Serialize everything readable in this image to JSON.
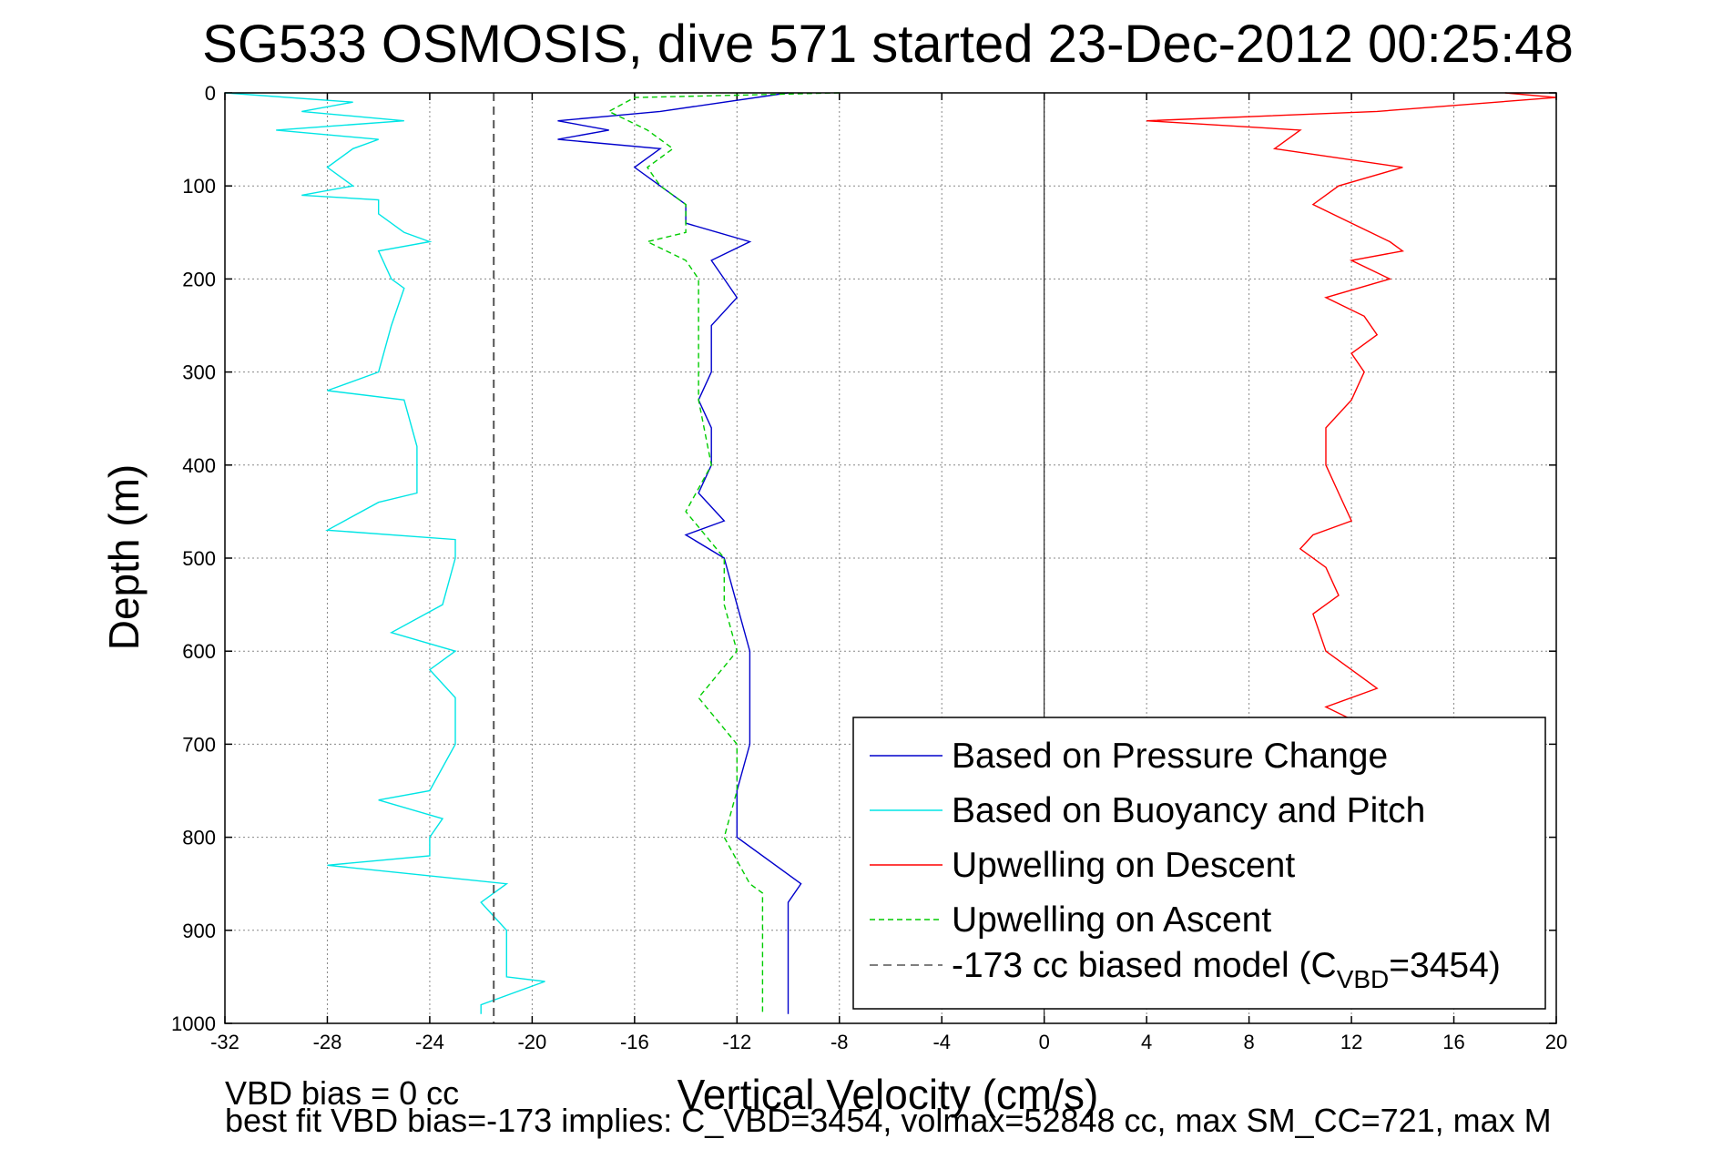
{
  "chart_data": {
    "type": "line",
    "title": "SG533 OSMOSIS, dive 571 started 23-Dec-2012 00:25:48",
    "xlabel": "Vertical Velocity (cm/s)",
    "ylabel": "Depth (m)",
    "xlim": [
      -32,
      20
    ],
    "ylim": [
      0,
      1000
    ],
    "y_reversed": true,
    "xticks": [
      -32,
      -28,
      -24,
      -20,
      -16,
      -12,
      -8,
      -4,
      0,
      4,
      8,
      12,
      16,
      20
    ],
    "yticks": [
      0,
      100,
      200,
      300,
      400,
      500,
      600,
      700,
      800,
      900,
      1000
    ],
    "grid": true,
    "legend_position": "bottom-right",
    "notes": [
      "VBD bias = 0 cc",
      "best fit VBD bias=-173 implies: C_VBD=3454, volmax=52848 cc, max SM_CC=721, max M"
    ],
    "series": [
      {
        "name": "Based on Pressure Change",
        "color": "#0000cc",
        "dash": "solid",
        "depth": [
          0,
          20,
          30,
          40,
          50,
          60,
          80,
          100,
          120,
          140,
          160,
          180,
          200,
          220,
          250,
          280,
          300,
          330,
          360,
          400,
          430,
          460,
          475,
          500,
          550,
          600,
          650,
          700,
          750,
          800,
          850,
          870,
          900,
          950,
          990
        ],
        "velocity": [
          -10,
          -15,
          -19,
          -17,
          -19,
          -15,
          -16,
          -15,
          -14,
          -14,
          -11.5,
          -13,
          -12.5,
          -12,
          -13,
          -13,
          -13,
          -13.5,
          -13,
          -13,
          -13.5,
          -12.5,
          -14,
          -12.5,
          -12,
          -11.5,
          -11.5,
          -11.5,
          -12,
          -12,
          -9.5,
          -10,
          -10,
          -10,
          -10
        ]
      },
      {
        "name": "Based on Buoyancy and Pitch",
        "color": "#00e5e5",
        "dash": "solid",
        "depth": [
          0,
          10,
          20,
          30,
          40,
          50,
          60,
          80,
          100,
          110,
          115,
          130,
          150,
          160,
          170,
          200,
          210,
          250,
          300,
          320,
          330,
          380,
          400,
          430,
          440,
          470,
          480,
          500,
          550,
          580,
          600,
          620,
          650,
          700,
          750,
          760,
          780,
          800,
          820,
          830,
          850,
          870,
          900,
          950,
          955,
          980,
          990
        ],
        "velocity": [
          -32,
          -27,
          -29,
          -25,
          -30,
          -26,
          -27,
          -28,
          -27,
          -29,
          -26,
          -26,
          -25,
          -24,
          -26,
          -25.5,
          -25,
          -25.5,
          -26,
          -28,
          -25,
          -24.5,
          -24.5,
          -24.5,
          -26,
          -28,
          -23,
          -23,
          -23.5,
          -25.5,
          -23,
          -24,
          -23,
          -23,
          -24,
          -26,
          -23.5,
          -24,
          -24,
          -28,
          -21,
          -22,
          -21,
          -21,
          -19.5,
          -22,
          -22
        ]
      },
      {
        "name": "Upwelling on Descent",
        "color": "#ff0000",
        "dash": "solid",
        "depth": [
          0,
          5,
          20,
          30,
          40,
          60,
          80,
          100,
          120,
          140,
          160,
          170,
          180,
          200,
          220,
          240,
          260,
          280,
          300,
          330,
          360,
          400,
          430,
          460,
          475,
          490,
          510,
          540,
          560,
          600,
          620,
          640,
          660,
          680
        ],
        "velocity": [
          18,
          20,
          13,
          4,
          10,
          9,
          14,
          11.5,
          10.5,
          12,
          13.5,
          14,
          12,
          13.5,
          11,
          12.5,
          13,
          12,
          12.5,
          12,
          11,
          11,
          11.5,
          12,
          10.5,
          10,
          11,
          11.5,
          10.5,
          11,
          12,
          13,
          11,
          12.5
        ]
      },
      {
        "name": "Upwelling on Ascent",
        "color": "#00cc00",
        "dash": "dashed",
        "depth": [
          0,
          5,
          20,
          40,
          60,
          80,
          100,
          120,
          150,
          160,
          180,
          200,
          250,
          300,
          330,
          400,
          450,
          500,
          520,
          550,
          600,
          650,
          700,
          750,
          800,
          850,
          860,
          900,
          950,
          990
        ],
        "velocity": [
          -8,
          -16,
          -17,
          -15.5,
          -14.5,
          -15.5,
          -15,
          -14,
          -14,
          -15.5,
          -14,
          -13.5,
          -13.5,
          -13.5,
          -13.5,
          -13,
          -14,
          -12.5,
          -12.5,
          -12.5,
          -12,
          -13.5,
          -12,
          -12,
          -12.5,
          -11.5,
          -11,
          -11,
          -11,
          -11
        ]
      },
      {
        "name": "-173 cc biased model (C",
        "name_sub": "VBD",
        "name_tail": "=3454)",
        "color": "#555555",
        "dash": "dashed",
        "depth": [
          0,
          1000
        ],
        "velocity": [
          -21.5,
          -21.5
        ]
      }
    ]
  }
}
